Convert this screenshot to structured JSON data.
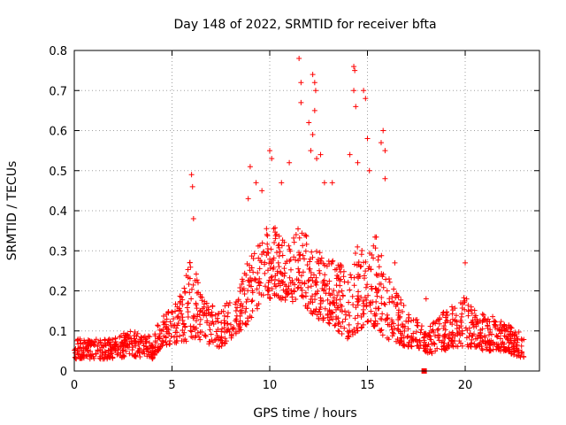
{
  "chart_data": {
    "type": "scatter",
    "title": "Day 148 of 2022, SRMTID for receiver bfta",
    "xlabel": "GPS time / hours",
    "ylabel": "SRMTID / TECUs",
    "xlim": [
      0,
      23.8
    ],
    "ylim": [
      0,
      0.8
    ],
    "x_ticks": [
      0,
      5,
      10,
      15,
      20
    ],
    "x_tick_labels": [
      "0",
      "5",
      "10",
      "15",
      "20"
    ],
    "y_ticks": [
      0,
      0.1,
      0.2,
      0.3,
      0.4,
      0.5,
      0.6,
      0.7,
      0.8
    ],
    "y_tick_labels": [
      "0",
      "0.1",
      "0.2",
      "0.3",
      "0.4",
      "0.5",
      "0.6",
      "0.7",
      "0.8"
    ],
    "grid": true,
    "marker": "plus",
    "color": "#ff0000",
    "envelope": {
      "x": [
        0,
        0.5,
        1,
        1.5,
        2,
        2.5,
        3,
        3.5,
        4,
        4.3,
        4.6,
        5,
        5.5,
        5.9,
        6.2,
        6.6,
        7,
        7.5,
        8,
        8.5,
        9,
        9.5,
        10,
        10.5,
        11,
        11.5,
        12,
        12.5,
        13,
        13.5,
        14,
        14.5,
        15,
        15.5,
        16,
        16.5,
        17,
        17.5,
        17.9,
        18.2,
        18.5,
        19,
        19.5,
        20,
        20.5,
        21,
        21.5,
        22,
        22.5,
        23
      ],
      "low": [
        0.03,
        0.03,
        0.03,
        0.03,
        0.03,
        0.035,
        0.035,
        0.035,
        0.03,
        0.05,
        0.06,
        0.07,
        0.07,
        0.07,
        0.08,
        0.07,
        0.06,
        0.06,
        0.08,
        0.1,
        0.12,
        0.15,
        0.17,
        0.18,
        0.17,
        0.18,
        0.15,
        0.13,
        0.12,
        0.1,
        0.08,
        0.1,
        0.12,
        0.1,
        0.08,
        0.07,
        0.06,
        0.06,
        0.05,
        0.04,
        0.05,
        0.05,
        0.06,
        0.06,
        0.06,
        0.05,
        0.05,
        0.05,
        0.04,
        0.03
      ],
      "high": [
        0.09,
        0.08,
        0.08,
        0.08,
        0.09,
        0.1,
        0.1,
        0.1,
        0.08,
        0.12,
        0.14,
        0.16,
        0.2,
        0.28,
        0.25,
        0.18,
        0.17,
        0.16,
        0.18,
        0.22,
        0.3,
        0.34,
        0.38,
        0.34,
        0.33,
        0.36,
        0.33,
        0.3,
        0.28,
        0.28,
        0.25,
        0.32,
        0.28,
        0.35,
        0.25,
        0.2,
        0.15,
        0.13,
        0.11,
        0.11,
        0.14,
        0.15,
        0.17,
        0.19,
        0.15,
        0.15,
        0.14,
        0.12,
        0.11,
        0.09
      ]
    },
    "peaks": [
      {
        "x": 6.0,
        "y": 0.49
      },
      {
        "x": 6.05,
        "y": 0.46
      },
      {
        "x": 6.1,
        "y": 0.38
      },
      {
        "x": 9.0,
        "y": 0.51
      },
      {
        "x": 9.3,
        "y": 0.47
      },
      {
        "x": 10.0,
        "y": 0.55
      },
      {
        "x": 10.1,
        "y": 0.53
      },
      {
        "x": 11.0,
        "y": 0.52
      },
      {
        "x": 11.5,
        "y": 0.78
      },
      {
        "x": 11.6,
        "y": 0.72
      },
      {
        "x": 11.6,
        "y": 0.67
      },
      {
        "x": 12.2,
        "y": 0.74
      },
      {
        "x": 12.3,
        "y": 0.72
      },
      {
        "x": 12.35,
        "y": 0.7
      },
      {
        "x": 12.3,
        "y": 0.65
      },
      {
        "x": 12.0,
        "y": 0.62
      },
      {
        "x": 12.2,
        "y": 0.59
      },
      {
        "x": 12.1,
        "y": 0.55
      },
      {
        "x": 12.4,
        "y": 0.53
      },
      {
        "x": 12.6,
        "y": 0.54
      },
      {
        "x": 12.8,
        "y": 0.47
      },
      {
        "x": 14.3,
        "y": 0.76
      },
      {
        "x": 14.35,
        "y": 0.75
      },
      {
        "x": 14.3,
        "y": 0.7
      },
      {
        "x": 14.4,
        "y": 0.66
      },
      {
        "x": 14.8,
        "y": 0.7
      },
      {
        "x": 14.9,
        "y": 0.68
      },
      {
        "x": 15.1,
        "y": 0.5
      },
      {
        "x": 15.0,
        "y": 0.58
      },
      {
        "x": 15.8,
        "y": 0.6
      },
      {
        "x": 15.7,
        "y": 0.57
      },
      {
        "x": 15.9,
        "y": 0.55
      },
      {
        "x": 15.9,
        "y": 0.48
      },
      {
        "x": 14.1,
        "y": 0.54
      },
      {
        "x": 14.5,
        "y": 0.52
      },
      {
        "x": 9.6,
        "y": 0.45
      },
      {
        "x": 8.9,
        "y": 0.43
      },
      {
        "x": 10.6,
        "y": 0.47
      },
      {
        "x": 13.2,
        "y": 0.47
      },
      {
        "x": 20.0,
        "y": 0.27
      },
      {
        "x": 16.4,
        "y": 0.27
      },
      {
        "x": 18.0,
        "y": 0.18
      }
    ],
    "square_markers": [
      {
        "x": 17.9,
        "y": 0.0
      }
    ],
    "points_per_hour": 70
  }
}
